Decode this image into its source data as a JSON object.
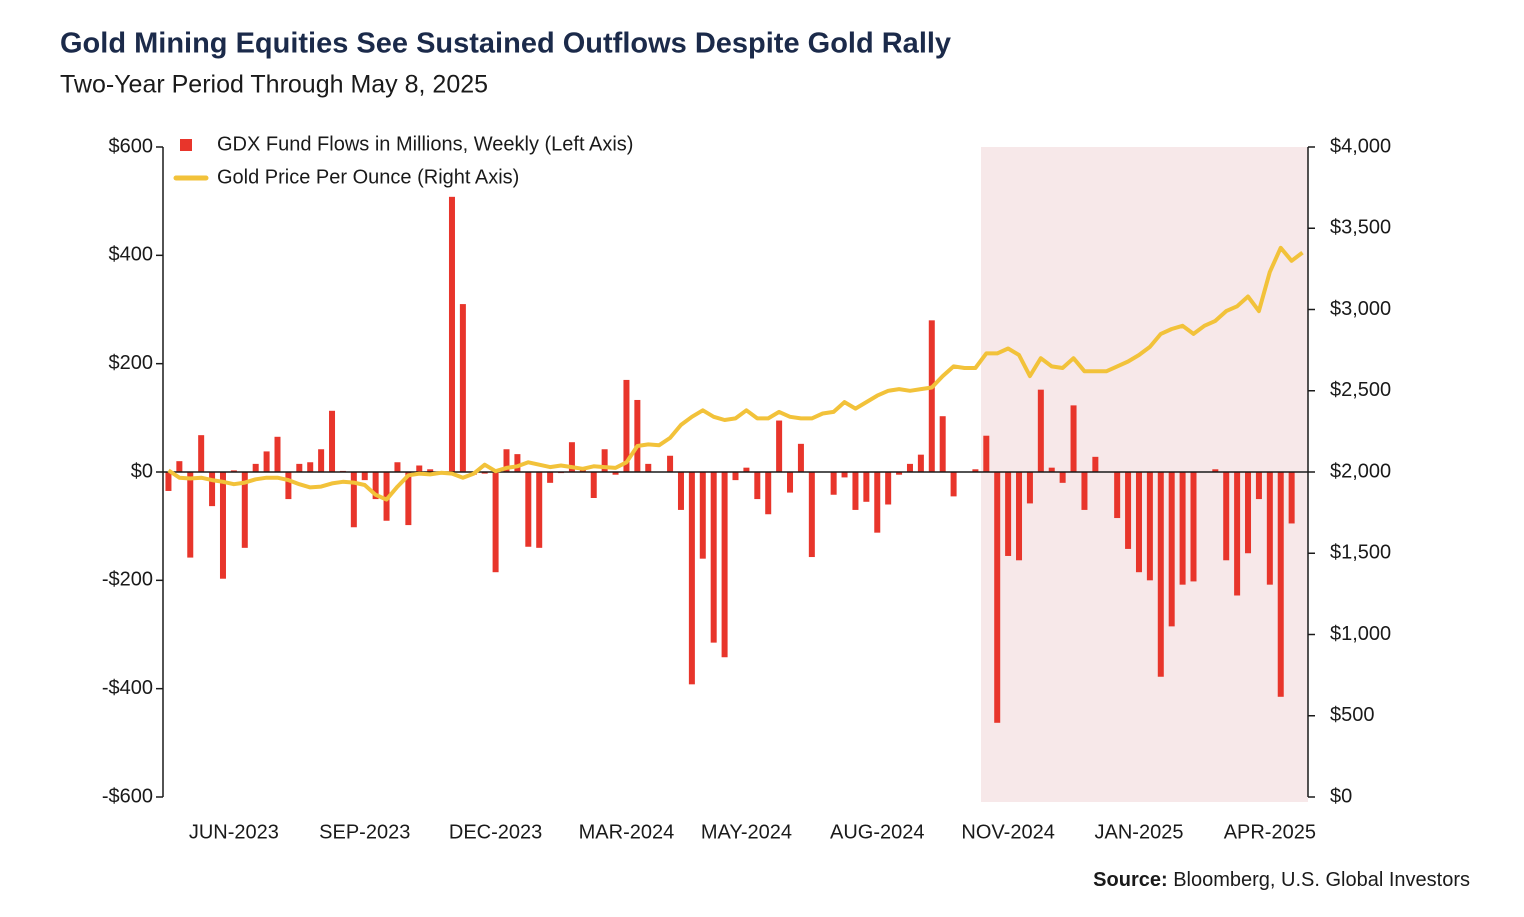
{
  "chart_data": {
    "type": "bar",
    "title": "Gold Mining Equities See Sustained Outflows Despite Gold Rally",
    "subtitle": "Two-Year Period Through May 8, 2025",
    "source_label": "Source:",
    "source_text": "Bloomberg, U.S. Global Investors",
    "categories": [
      null,
      null,
      null,
      null,
      null,
      null,
      "JUN-2023",
      null,
      null,
      null,
      null,
      null,
      null,
      null,
      null,
      null,
      null,
      null,
      "SEP-2023",
      null,
      null,
      null,
      null,
      null,
      null,
      null,
      null,
      null,
      null,
      null,
      "DEC-2023",
      null,
      null,
      null,
      null,
      null,
      null,
      null,
      null,
      null,
      null,
      null,
      "MAR-2024",
      null,
      null,
      null,
      null,
      null,
      null,
      null,
      null,
      null,
      null,
      "MAY-2024",
      null,
      null,
      null,
      null,
      null,
      null,
      null,
      null,
      null,
      null,
      null,
      "AUG-2024",
      null,
      null,
      null,
      null,
      null,
      null,
      null,
      null,
      null,
      null,
      null,
      "NOV-2024",
      null,
      null,
      null,
      null,
      null,
      null,
      null,
      null,
      null,
      null,
      null,
      "JAN-2025",
      null,
      null,
      null,
      null,
      null,
      null,
      null,
      null,
      null,
      null,
      null,
      "APR-2025",
      null,
      null,
      null
    ],
    "series": [
      {
        "name": "GDX Fund Flows in Millions, Weekly (Left Axis)",
        "type": "bar",
        "color": "#e8352b",
        "values": [
          -35,
          20,
          -158,
          68,
          -63,
          -197,
          3,
          -140,
          15,
          38,
          65,
          -50,
          15,
          18,
          42,
          113,
          2,
          -102,
          -15,
          -50,
          -90,
          18,
          -98,
          12,
          5,
          0,
          508,
          310,
          -5,
          -3,
          -185,
          42,
          33,
          -138,
          -140,
          -20,
          -2,
          55,
          5,
          -48,
          42,
          -5,
          170,
          133,
          15,
          0,
          30,
          -70,
          -392,
          -160,
          -315,
          -342,
          -15,
          8,
          -50,
          -78,
          95,
          -38,
          52,
          -157,
          0,
          -42,
          -10,
          -70,
          -55,
          -112,
          -60,
          -5,
          15,
          32,
          280,
          103,
          -45,
          0,
          5,
          67,
          -463,
          -155,
          -163,
          -58,
          152,
          8,
          -20,
          123,
          -70,
          28,
          0,
          -85,
          -142,
          -185,
          -200,
          -378,
          -285,
          -208,
          -202,
          0,
          5,
          -163,
          -228,
          -150,
          -50,
          -208,
          -415,
          -95,
          0
        ]
      },
      {
        "name": "Gold Price Per Ounce (Right Axis)",
        "type": "line",
        "axis": "y2",
        "color": "#f2c23a",
        "values": [
          2010,
          1965,
          1960,
          1965,
          1950,
          1940,
          1925,
          1935,
          1955,
          1965,
          1965,
          1950,
          1925,
          1905,
          1910,
          1930,
          1940,
          1935,
          1920,
          1860,
          1830,
          1910,
          1980,
          1990,
          1985,
          1995,
          1990,
          1965,
          1990,
          2045,
          2005,
          2025,
          2035,
          2060,
          2045,
          2030,
          2040,
          2030,
          2020,
          2035,
          2030,
          2025,
          2060,
          2160,
          2170,
          2165,
          2210,
          2290,
          2340,
          2380,
          2340,
          2320,
          2330,
          2380,
          2330,
          2330,
          2370,
          2340,
          2330,
          2330,
          2360,
          2370,
          2430,
          2390,
          2430,
          2470,
          2500,
          2510,
          2500,
          2510,
          2520,
          2590,
          2650,
          2640,
          2640,
          2730,
          2730,
          2760,
          2720,
          2590,
          2700,
          2650,
          2640,
          2700,
          2620,
          2620,
          2620,
          2650,
          2680,
          2720,
          2770,
          2850,
          2880,
          2900,
          2850,
          2900,
          2930,
          2990,
          3020,
          3080,
          2990,
          3230,
          3380,
          3300,
          3350
        ]
      }
    ],
    "ylim": [
      -600,
      600
    ],
    "yticks": [
      {
        "value": -600,
        "label": "-$600"
      },
      {
        "value": -400,
        "label": "-$400"
      },
      {
        "value": -200,
        "label": "-$200"
      },
      {
        "value": 0,
        "label": "$0"
      },
      {
        "value": 200,
        "label": "$200"
      },
      {
        "value": 400,
        "label": "$400"
      },
      {
        "value": 600,
        "label": "$600"
      }
    ],
    "y2lim": [
      0,
      4000
    ],
    "y2ticks": [
      {
        "value": 0,
        "label": "$0"
      },
      {
        "value": 500,
        "label": "$500"
      },
      {
        "value": 1000,
        "label": "$1,000"
      },
      {
        "value": 1500,
        "label": "$1,500"
      },
      {
        "value": 2000,
        "label": "$2,000"
      },
      {
        "value": 2500,
        "label": "$2,500"
      },
      {
        "value": 3000,
        "label": "$3,000"
      },
      {
        "value": 3500,
        "label": "$3,500"
      },
      {
        "value": 4000,
        "label": "$4,000"
      }
    ]
  }
}
